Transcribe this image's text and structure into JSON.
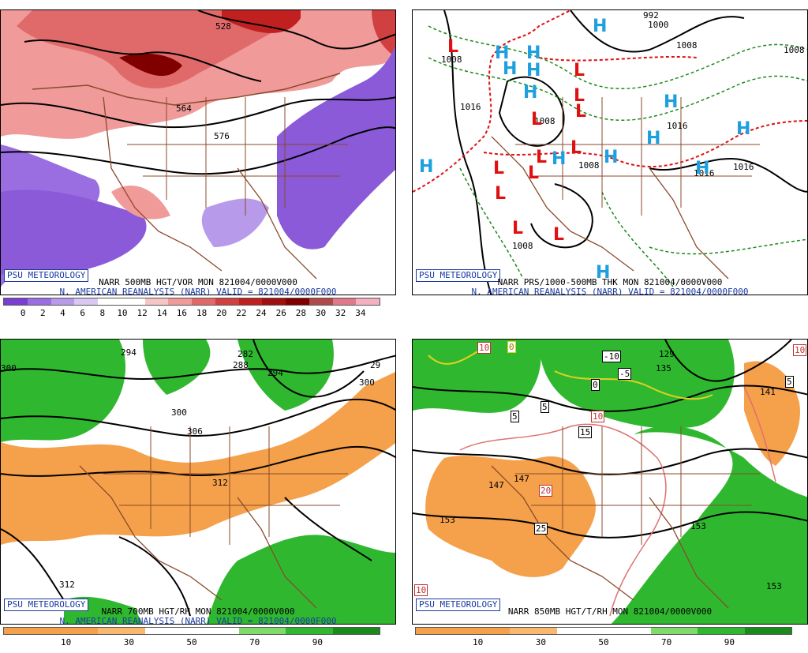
{
  "panels": [
    {
      "id": "vort500",
      "badge": "PSU METEOROLOGY",
      "caption1": "NARR 500MB HGT/VOR MON 821004/0000V000",
      "caption2": "N. AMERICAN REANALYSIS (NARR) VALID = 821004/0000F000",
      "colorbar": {
        "colors": [
          "#7a3fd0",
          "#9a6ee0",
          "#b79bea",
          "#d9c8f3",
          "#ffffff",
          "#ffffff",
          "#f6c6c6",
          "#f09a9a",
          "#e06a6a",
          "#d04040",
          "#c02020",
          "#a01010",
          "#800000",
          "#b04a4a",
          "#e07a8a",
          "#f5b0c0"
        ],
        "tick_labels": [
          "0",
          "2",
          "4",
          "6",
          "8",
          "10",
          "12",
          "14",
          "16",
          "18",
          "20",
          "22",
          "24",
          "26",
          "28",
          "30",
          "32",
          "34"
        ]
      },
      "contour_labels": [
        "528",
        "564",
        "576"
      ]
    },
    {
      "id": "sfc",
      "badge": "PSU METEOROLOGY",
      "caption1": "NARR PRS/1000-500MB THK MON 821004/0000V000",
      "caption2": "N. AMERICAN REANALYSIS (NARR) VALID = 821004/0000F000",
      "contour_labels": [
        "992",
        "1000",
        "1008",
        "1008",
        "1016",
        "1016",
        "1008",
        "1008",
        "1008",
        "1016",
        "1016",
        "1008"
      ],
      "high_symbol": "H",
      "low_symbol": "L"
    },
    {
      "id": "rh700",
      "badge": "PSU METEOROLOGY",
      "caption1": "NARR 700MB HGT/RH MON 821004/0000V000",
      "caption2": "N. AMERICAN REANALYSIS (NARR) VALID = 821004/0000F000",
      "colorbar": {
        "colors": [
          "#f5a04a",
          "#f5a04a",
          "#f8b870",
          "#ffffff",
          "#ffffff",
          "#7fdc6a",
          "#2fb82f",
          "#1a8a1a"
        ],
        "tick_labels": [
          "10",
          "30",
          "50",
          "70",
          "90"
        ]
      },
      "contour_labels": [
        "294",
        "282",
        "288",
        "294",
        "300",
        "300",
        "306",
        "312",
        "312",
        "300",
        "29"
      ]
    },
    {
      "id": "rh850",
      "badge": "PSU METEOROLOGY",
      "caption1": "NARR 850MB HGT/T/RH MON 821004/0000V000",
      "colorbar": {
        "colors": [
          "#f5a04a",
          "#f5a04a",
          "#f8b870",
          "#ffffff",
          "#ffffff",
          "#7fdc6a",
          "#2fb82f",
          "#1a8a1a"
        ],
        "tick_labels": [
          "10",
          "30",
          "50",
          "70",
          "90"
        ]
      },
      "contour_labels": [
        "129",
        "135",
        "141",
        "147",
        "147",
        "153",
        "153",
        "153"
      ],
      "temp_labels": [
        "-10",
        "-5",
        "0",
        "5",
        "5",
        "10",
        "15",
        "20",
        "25",
        "10",
        "10",
        "10",
        "5",
        "0"
      ]
    }
  ]
}
